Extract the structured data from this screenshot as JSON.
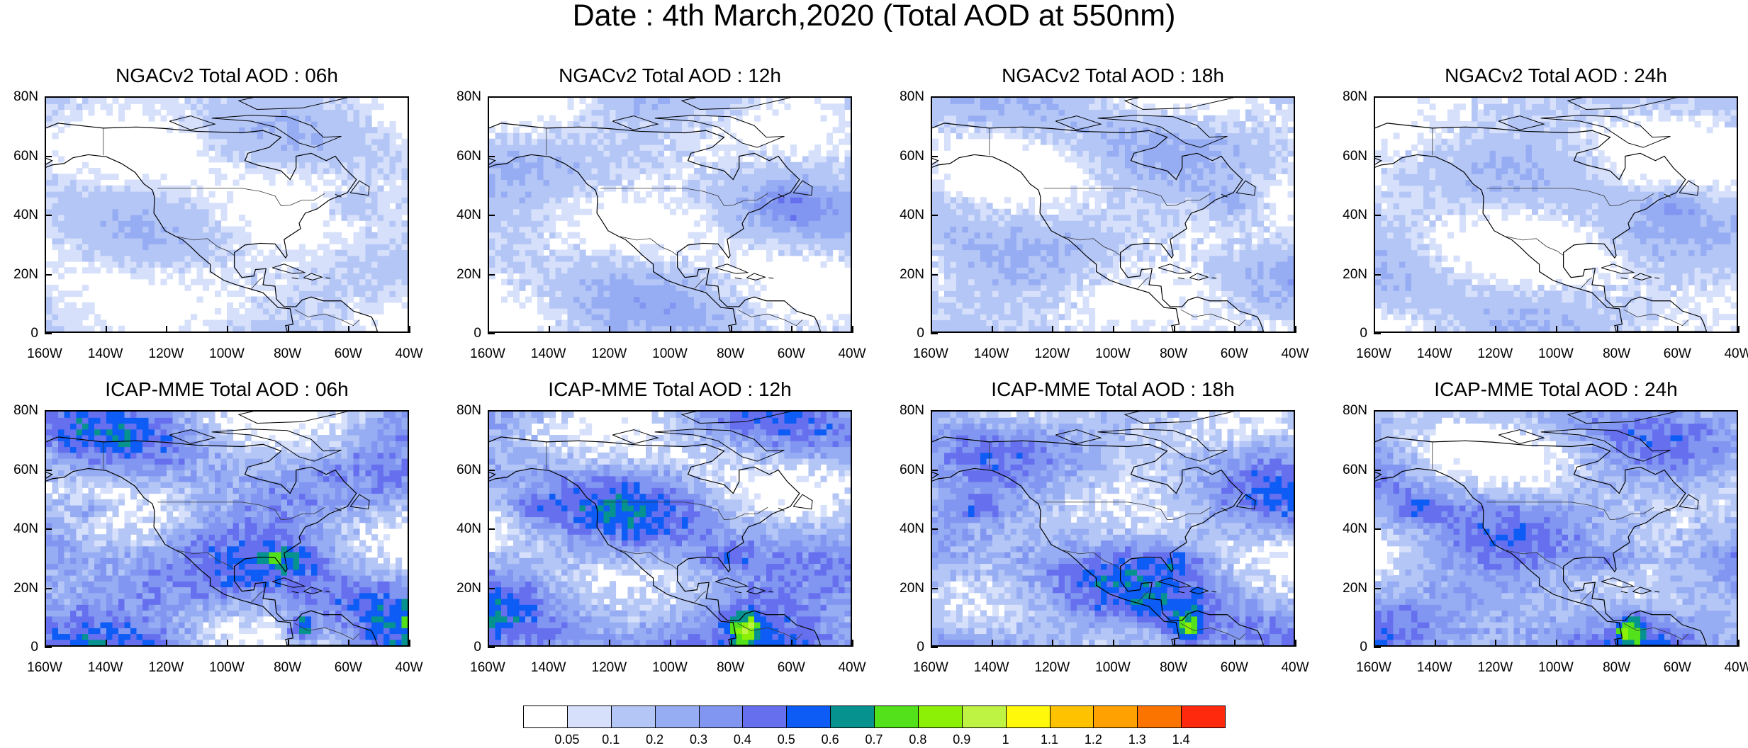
{
  "title": "Date : 4th March,2020 (Total AOD at 550nm)",
  "axes": {
    "lat_ticks": [
      "0",
      "20N",
      "40N",
      "60N",
      "80N"
    ],
    "lon_ticks": [
      "160W",
      "140W",
      "120W",
      "100W",
      "80W",
      "60W",
      "40W"
    ],
    "lon_range": [
      -160,
      -40
    ],
    "lat_range": [
      0,
      80
    ]
  },
  "panels": [
    {
      "title": "NGACv2 Total AOD : 06h",
      "model": "NGACv2",
      "hour": "06h",
      "intensity": 0.15
    },
    {
      "title": "NGACv2 Total AOD : 12h",
      "model": "NGACv2",
      "hour": "12h",
      "intensity": 0.2
    },
    {
      "title": "NGACv2 Total AOD : 18h",
      "model": "NGACv2",
      "hour": "18h",
      "intensity": 0.2
    },
    {
      "title": "NGACv2 Total AOD : 24h",
      "model": "NGACv2",
      "hour": "24h",
      "intensity": 0.18
    },
    {
      "title": "ICAP-MME Total AOD : 06h",
      "model": "ICAP-MME",
      "hour": "06h",
      "intensity": 0.4
    },
    {
      "title": "ICAP-MME Total AOD : 12h",
      "model": "ICAP-MME",
      "hour": "12h",
      "intensity": 0.38
    },
    {
      "title": "ICAP-MME Total AOD : 18h",
      "model": "ICAP-MME",
      "hour": "18h",
      "intensity": 0.36
    },
    {
      "title": "ICAP-MME Total AOD : 24h",
      "model": "ICAP-MME",
      "hour": "24h",
      "intensity": 0.34
    }
  ],
  "colorbar": {
    "levels": [
      "0.05",
      "0.1",
      "0.2",
      "0.3",
      "0.4",
      "0.5",
      "0.6",
      "0.7",
      "0.8",
      "0.9",
      "1",
      "1.1",
      "1.2",
      "1.3",
      "1.4"
    ],
    "colors": [
      "#ffffff",
      "#d6e0fb",
      "#b4c6f6",
      "#97adf3",
      "#8196f0",
      "#6670ef",
      "#0c5cf5",
      "#06938f",
      "#52e11a",
      "#8bf006",
      "#bff343",
      "#fff80a",
      "#ffc200",
      "#ffa100",
      "#fb7400",
      "#ff2a0e"
    ]
  }
}
